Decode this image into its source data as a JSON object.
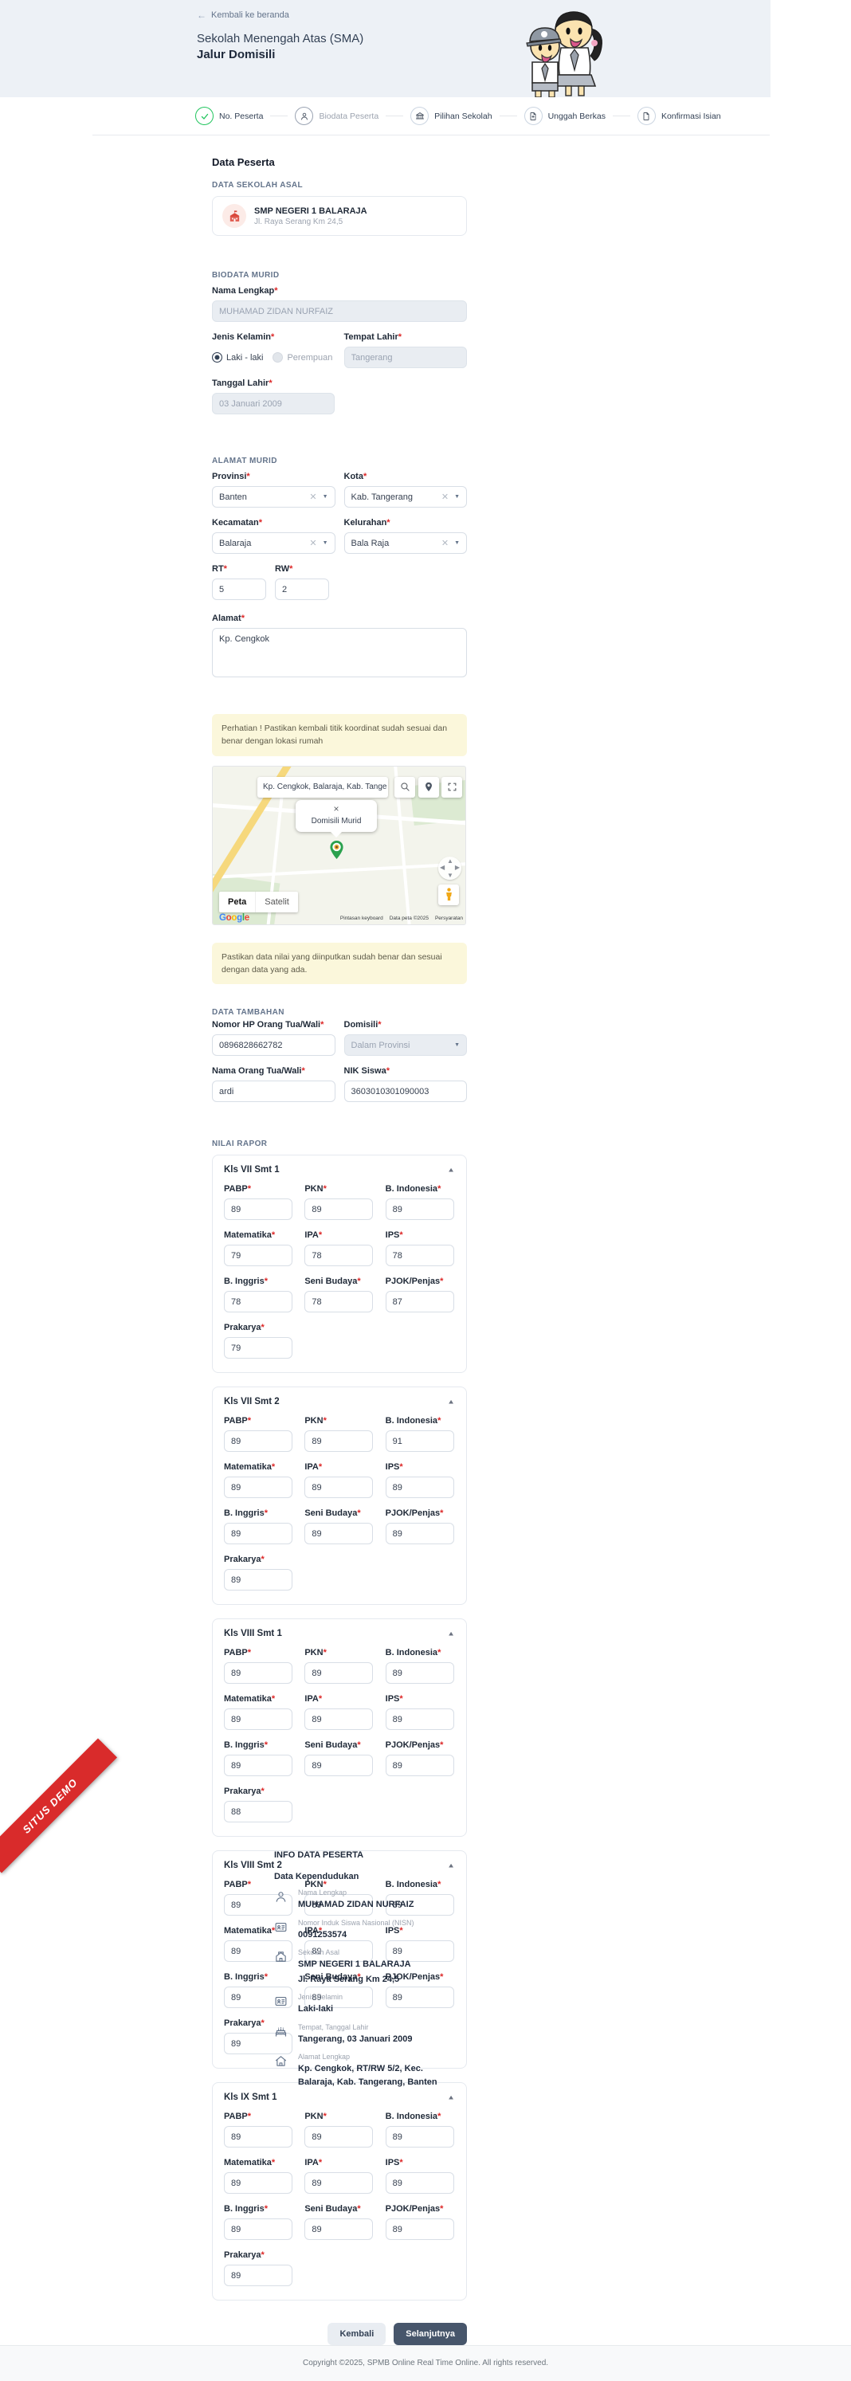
{
  "required_mark": "*",
  "header": {
    "back": "Kembali ke beranda",
    "title": "Sekolah Menengah Atas (SMA)",
    "subtitle": "Jalur Domisili"
  },
  "stepper": {
    "steps": [
      {
        "label": "No. Peserta",
        "state": "done"
      },
      {
        "label": "Biodata Peserta",
        "state": "current"
      },
      {
        "label": "Pilihan Sekolah",
        "state": "todo"
      },
      {
        "label": "Unggah Berkas",
        "state": "todo"
      },
      {
        "label": "Konfirmasi Isian",
        "state": "todo"
      }
    ]
  },
  "main": {
    "page_title": "Data Peserta",
    "sekolah_asal": {
      "section": "DATA SEKOLAH ASAL",
      "name": "SMP NEGERI 1 BALARAJA",
      "address": "Jl. Raya Serang Km 24,5"
    },
    "biodata": {
      "section": "BIODATA MURID",
      "nama": {
        "label": "Nama Lengkap",
        "value": "MUHAMAD ZIDAN NURFAIZ"
      },
      "jenis_kelamin": {
        "label": "Jenis Kelamin",
        "options": [
          "Laki - laki",
          "Perempuan"
        ],
        "selected": "Laki - laki"
      },
      "tempat_lahir": {
        "label": "Tempat Lahir",
        "value": "Tangerang"
      },
      "tanggal_lahir": {
        "label": "Tanggal Lahir",
        "value": "03 Januari 2009"
      }
    },
    "alamat": {
      "section": "ALAMAT MURID",
      "provinsi": {
        "label": "Provinsi",
        "value": "Banten"
      },
      "kota": {
        "label": "Kota",
        "value": "Kab. Tangerang"
      },
      "kecamatan": {
        "label": "Kecamatan",
        "value": "Balaraja"
      },
      "kelurahan": {
        "label": "Kelurahan",
        "value": "Bala Raja"
      },
      "rt": {
        "label": "RT",
        "value": "5"
      },
      "rw": {
        "label": "RW",
        "value": "2"
      },
      "alamat": {
        "label": "Alamat",
        "value": "Kp. Cengkok"
      }
    },
    "map_warning": "Perhatian ! Pastikan kembali titik koordinat sudah sesuai dan benar dengan lokasi rumah",
    "map": {
      "search_value": "Kp. Cengkok, Balaraja, Kab. Tange",
      "popup_close": "×",
      "popup_title": "Domisili Murid",
      "layer_map": "Peta",
      "layer_satellite": "Satelit",
      "logo": "Google",
      "attr_keyboard": "Pintasan keyboard",
      "attr_data": "Data peta ©2025",
      "attr_terms": "Persyaratan"
    },
    "nilai_warning": "Pastikan data nilai yang diinputkan sudah benar dan sesuai dengan data yang ada.",
    "data_tambahan": {
      "section": "DATA TAMBAHAN",
      "hp": {
        "label": "Nomor HP Orang Tua/Wali",
        "value": "0896828662782"
      },
      "domisili": {
        "label": "Domisili",
        "value": "Dalam Provinsi"
      },
      "nama_ortu": {
        "label": "Nama Orang Tua/Wali",
        "value": "ardi"
      },
      "nik": {
        "label": "NIK Siswa",
        "value": "3603010301090003"
      }
    },
    "nilai_rapor": {
      "section": "NILAI RAPOR",
      "subjects": [
        "PABP",
        "PKN",
        "B. Indonesia",
        "Matematika",
        "IPA",
        "IPS",
        "B. Inggris",
        "Seni Budaya",
        "PJOK/Penjas",
        "Prakarya"
      ],
      "semesters": [
        {
          "title": "Kls VII Smt 1",
          "values": [
            "89",
            "89",
            "89",
            "79",
            "78",
            "78",
            "78",
            "78",
            "87",
            "79"
          ]
        },
        {
          "title": "Kls VII Smt 2",
          "values": [
            "89",
            "89",
            "91",
            "89",
            "89",
            "89",
            "89",
            "89",
            "89",
            "89"
          ]
        },
        {
          "title": "Kls VIII Smt 1",
          "values": [
            "89",
            "89",
            "89",
            "89",
            "89",
            "89",
            "89",
            "89",
            "89",
            "88"
          ]
        },
        {
          "title": "Kls VIII Smt 2",
          "values": [
            "89",
            "89",
            "89",
            "89",
            "89",
            "89",
            "89",
            "89",
            "89",
            "89"
          ]
        },
        {
          "title": "Kls IX Smt 1",
          "values": [
            "89",
            "89",
            "89",
            "89",
            "89",
            "89",
            "89",
            "89",
            "89",
            "89"
          ]
        }
      ]
    },
    "actions": {
      "back": "Kembali",
      "next": "Selanjutnya"
    }
  },
  "info_panel": {
    "title": "INFO DATA PESERTA",
    "group": "Data Kependudukan",
    "items": [
      {
        "icon": "person-icon",
        "label": "Nama Lengkap",
        "value": "MUHAMAD ZIDAN NURFAIZ"
      },
      {
        "icon": "id-card-icon",
        "label": "Nomor Induk Siswa Nasional (NISN)",
        "value": "0091253574"
      },
      {
        "icon": "school-icon",
        "label": "Sekolah Asal",
        "value": "SMP NEGERI 1 BALARAJA",
        "value2": "Jl. Raya Serang Km 24,5"
      },
      {
        "icon": "id-card-icon",
        "label": "Jenis Kelamin",
        "value": "Laki-laki"
      },
      {
        "icon": "cake-icon",
        "label": "Tempat, Tanggal Lahir",
        "value": "Tangerang, 03 Januari 2009"
      },
      {
        "icon": "home-icon",
        "label": "Alamat Lengkap",
        "value": "Kp. Cengkok, RT/RW 5/2, Kec. Balaraja, Kab. Tangerang, Banten"
      }
    ]
  },
  "ribbon": "SITUS DEMO",
  "footer": "Copyright ©2025, SPMB Online Real Time Online. All rights reserved.",
  "colors": {
    "accent_green": "#22c55e",
    "demo_red": "#d92b2b",
    "primary_dark": "#47566b",
    "warning_bg": "#fbf7db"
  }
}
